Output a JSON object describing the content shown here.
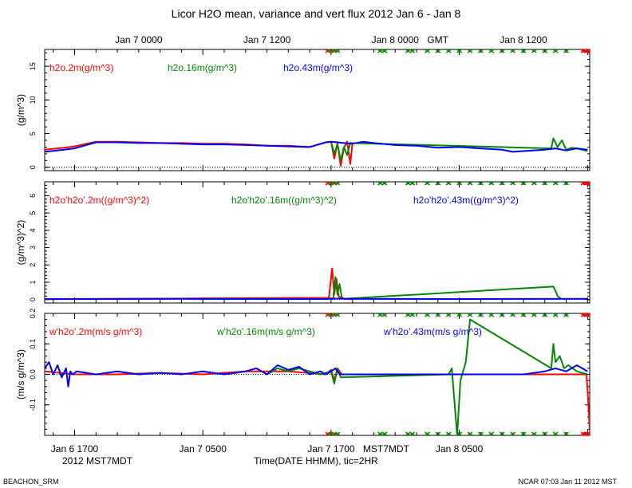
{
  "title": "Licor H2O mean, variance and vert flux 2012 Jan 6 - Jan 8",
  "top_axis": {
    "unit": "GMT",
    "ticks": [
      {
        "label": "Jan  7 0000",
        "hour": 6
      },
      {
        "label": "Jan  7 1200",
        "hour": 18
      },
      {
        "label": "Jan  8 0000",
        "hour": 30
      },
      {
        "label": "Jan  8 1200",
        "hour": 42
      }
    ]
  },
  "bottom_axis": {
    "ticks": [
      {
        "label": "Jan  6 1700",
        "hour": 0
      },
      {
        "label": "Jan  7 0500",
        "hour": 12
      },
      {
        "label": "Jan  7 1700",
        "hour": 24
      },
      {
        "label": "Jan  8 0500",
        "hour": 36
      }
    ],
    "timezone": "MST7MDT",
    "year_label": "2012 MST7MDT",
    "xlabel": "Time(DATE HHMM), tic=2HR"
  },
  "footer": {
    "left": "BEACHON_SRM",
    "right": "NCAR 07:03 Jan 11 2012 MST"
  },
  "colors": {
    "c2m": "#ff0000",
    "c16m": "#008800",
    "c43m": "#0000ff",
    "frame": "#000000"
  },
  "chart_data": [
    {
      "type": "line",
      "name": "mean",
      "ylabel": "(g/m^3)",
      "ylim": [
        -0.5,
        17.5
      ],
      "yticks": [
        0,
        5,
        10,
        15
      ],
      "xlim_hours": [
        -2.8,
        48.2
      ],
      "zero_line": "dotted",
      "legend": [
        "h2o.2m(g/m^3)",
        "h2o.16m(g/m^3)",
        "h2o.43m(g/m^3)"
      ],
      "series": [
        {
          "name": "h2o.2m(g/m^3)",
          "color": "#ff0000",
          "x": [
            -2.8,
            -1,
            0,
            2,
            4,
            6,
            8,
            10,
            12,
            14,
            16,
            18,
            20,
            22,
            23.5,
            24,
            24.3,
            24.6,
            24.9,
            25.2,
            25.5,
            25.8,
            26
          ],
          "y": [
            2.6,
            2.9,
            3.1,
            3.8,
            3.8,
            3.7,
            3.6,
            3.6,
            3.5,
            3.5,
            3.4,
            3.2,
            3.2,
            3.0,
            3.7,
            3.8,
            1.3,
            3.6,
            0.2,
            2.9,
            3.8,
            0.5,
            3.6
          ]
        },
        {
          "name": "h2o.16m(g/m^3)",
          "color": "#008800",
          "x": [
            24,
            24.3,
            24.6,
            24.9,
            25.2,
            25.5,
            25.8,
            44.6,
            44.8,
            45.2,
            45.6,
            46,
            46.5,
            47,
            47.5,
            48
          ],
          "y": [
            3.8,
            2.0,
            3.4,
            1.0,
            3.0,
            1.8,
            3.6,
            2.8,
            4.3,
            3.0,
            4.0,
            2.6,
            2.9,
            2.8,
            2.6,
            2.4
          ]
        },
        {
          "name": "h2o.43m(g/m^3)",
          "color": "#0000ff",
          "x": [
            -2.8,
            -1,
            0,
            2,
            4,
            6,
            8,
            10,
            12,
            14,
            16,
            18,
            20,
            22,
            23.5,
            24,
            24.6,
            25.2,
            26,
            27,
            28,
            30,
            32,
            34,
            36,
            38,
            40,
            41,
            42,
            44,
            45,
            46,
            47,
            48
          ],
          "y": [
            2.3,
            2.6,
            2.8,
            3.7,
            3.7,
            3.6,
            3.6,
            3.5,
            3.4,
            3.4,
            3.3,
            3.2,
            3.1,
            3.0,
            3.7,
            3.8,
            3.7,
            3.6,
            3.5,
            3.8,
            3.6,
            3.3,
            3.2,
            2.9,
            3.0,
            2.8,
            2.6,
            2.3,
            2.4,
            2.6,
            2.8,
            2.5,
            2.8,
            2.6
          ]
        }
      ]
    },
    {
      "type": "line",
      "name": "variance",
      "ylabel": "(g/m^3)^2)",
      "ylim": [
        -0.2,
        6.8
      ],
      "yticks": [
        0,
        1,
        2,
        3,
        4,
        5,
        6
      ],
      "xlim_hours": [
        -2.8,
        48.2
      ],
      "zero_line": "dotted",
      "legend": [
        "h2o'h2o'.2m((g/m^3)^2)",
        "h2o'h2o'.16m((g/m^3)^2)",
        "h2o'h2o'.43m((g/m^3)^2)"
      ],
      "series": [
        {
          "name": "h2o'h2o'.2m((g/m^3)^2)",
          "color": "#ff0000",
          "x": [
            -2.8,
            23.8,
            24.1,
            24.3,
            24.5,
            24.7,
            25.0,
            26
          ],
          "y": [
            0.02,
            0.1,
            1.8,
            0.3,
            1.2,
            0.2,
            0.05,
            0.02
          ]
        },
        {
          "name": "h2o'h2o'.16m((g/m^3)^2)",
          "color": "#008800",
          "x": [
            24.2,
            24.4,
            24.6,
            24.8,
            25.0,
            25.3,
            44.8,
            45.0,
            45.2,
            45.5
          ],
          "y": [
            0.1,
            1.3,
            0.3,
            0.9,
            0.1,
            0.05,
            0.75,
            0.5,
            0.2,
            0.05
          ]
        },
        {
          "name": "h2o'h2o'.43m((g/m^3)^2)",
          "color": "#0000ff",
          "x": [
            -2.8,
            10,
            23.5,
            24.3,
            26,
            36,
            48
          ],
          "y": [
            0.03,
            0.04,
            0.03,
            0.06,
            0.04,
            0.03,
            0.04
          ]
        }
      ]
    },
    {
      "type": "line",
      "name": "flux",
      "ylabel": "(m/s g/m^3)",
      "ylim": [
        -0.2,
        0.2
      ],
      "yticks": [
        -0.1,
        0.0,
        0.1,
        0.2
      ],
      "xlim_hours": [
        -2.8,
        48.2
      ],
      "zero_line": "dotted",
      "legend": [
        "w'h2o'.2m(m/s g/m^3)",
        "w'h2o'.16m(m/s g/m^3)",
        "w'h2o'.43m(m/s g/m^3)"
      ],
      "series": [
        {
          "name": "w'h2o'.2m(m/s g/m^3)",
          "color": "#ff0000",
          "x": [
            -2.8,
            0,
            4,
            8,
            12,
            16,
            20,
            23.5,
            24,
            24.3,
            24.6,
            25,
            26,
            47.9,
            48,
            48.2
          ],
          "y": [
            0.01,
            0.0,
            0.0,
            0.005,
            0.0,
            0.01,
            0.01,
            0.0,
            0.015,
            -0.02,
            0.02,
            0.0,
            0.0,
            0.0,
            -0.05,
            -0.18
          ]
        },
        {
          "name": "w'h2o'.16m(m/s g/m^3)",
          "color": "#008800",
          "x": [
            18,
            19,
            20,
            21,
            22,
            23,
            24,
            24.3,
            24.6,
            24.9,
            35.0,
            35.3,
            35.8,
            36.1,
            36.6,
            37.0,
            44.6,
            44.8,
            45.0,
            45.4,
            45.8,
            46.2,
            47.0,
            48
          ],
          "y": [
            0.0,
            0.02,
            0.01,
            0.02,
            0.01,
            0.0,
            0.01,
            -0.03,
            0.02,
            -0.01,
            0.0,
            0.02,
            -0.2,
            -0.02,
            0.04,
            0.18,
            0.02,
            0.1,
            0.04,
            0.06,
            0.02,
            0.03,
            0.01,
            0.0
          ]
        },
        {
          "name": "w'h2o'.43m(m/s g/m^3)",
          "color": "#0000ff",
          "x": [
            -2.8,
            -2.4,
            -2.0,
            -1.6,
            -1.2,
            -0.8,
            -0.6,
            -0.4,
            -0.2,
            0.2,
            2,
            4,
            6,
            8,
            10,
            12,
            14,
            16,
            17,
            18,
            19,
            20,
            21,
            22,
            23,
            23.5,
            24,
            24.4,
            24.8,
            26,
            30,
            34,
            38,
            42,
            44,
            45,
            46,
            47,
            48
          ],
          "y": [
            0.02,
            0.04,
            0.0,
            0.03,
            -0.01,
            0.02,
            -0.04,
            0.01,
            0.0,
            0.01,
            0.0,
            0.01,
            0.0,
            0.005,
            0.0,
            0.01,
            0.0,
            0.01,
            0.02,
            0.0,
            0.03,
            0.015,
            0.025,
            0.0,
            0.01,
            0.0,
            0.01,
            0.02,
            0.0,
            0.0,
            0.0,
            0.0,
            0.0,
            0.0,
            0.01,
            0.02,
            0.01,
            0.03,
            0.01
          ]
        }
      ]
    }
  ]
}
